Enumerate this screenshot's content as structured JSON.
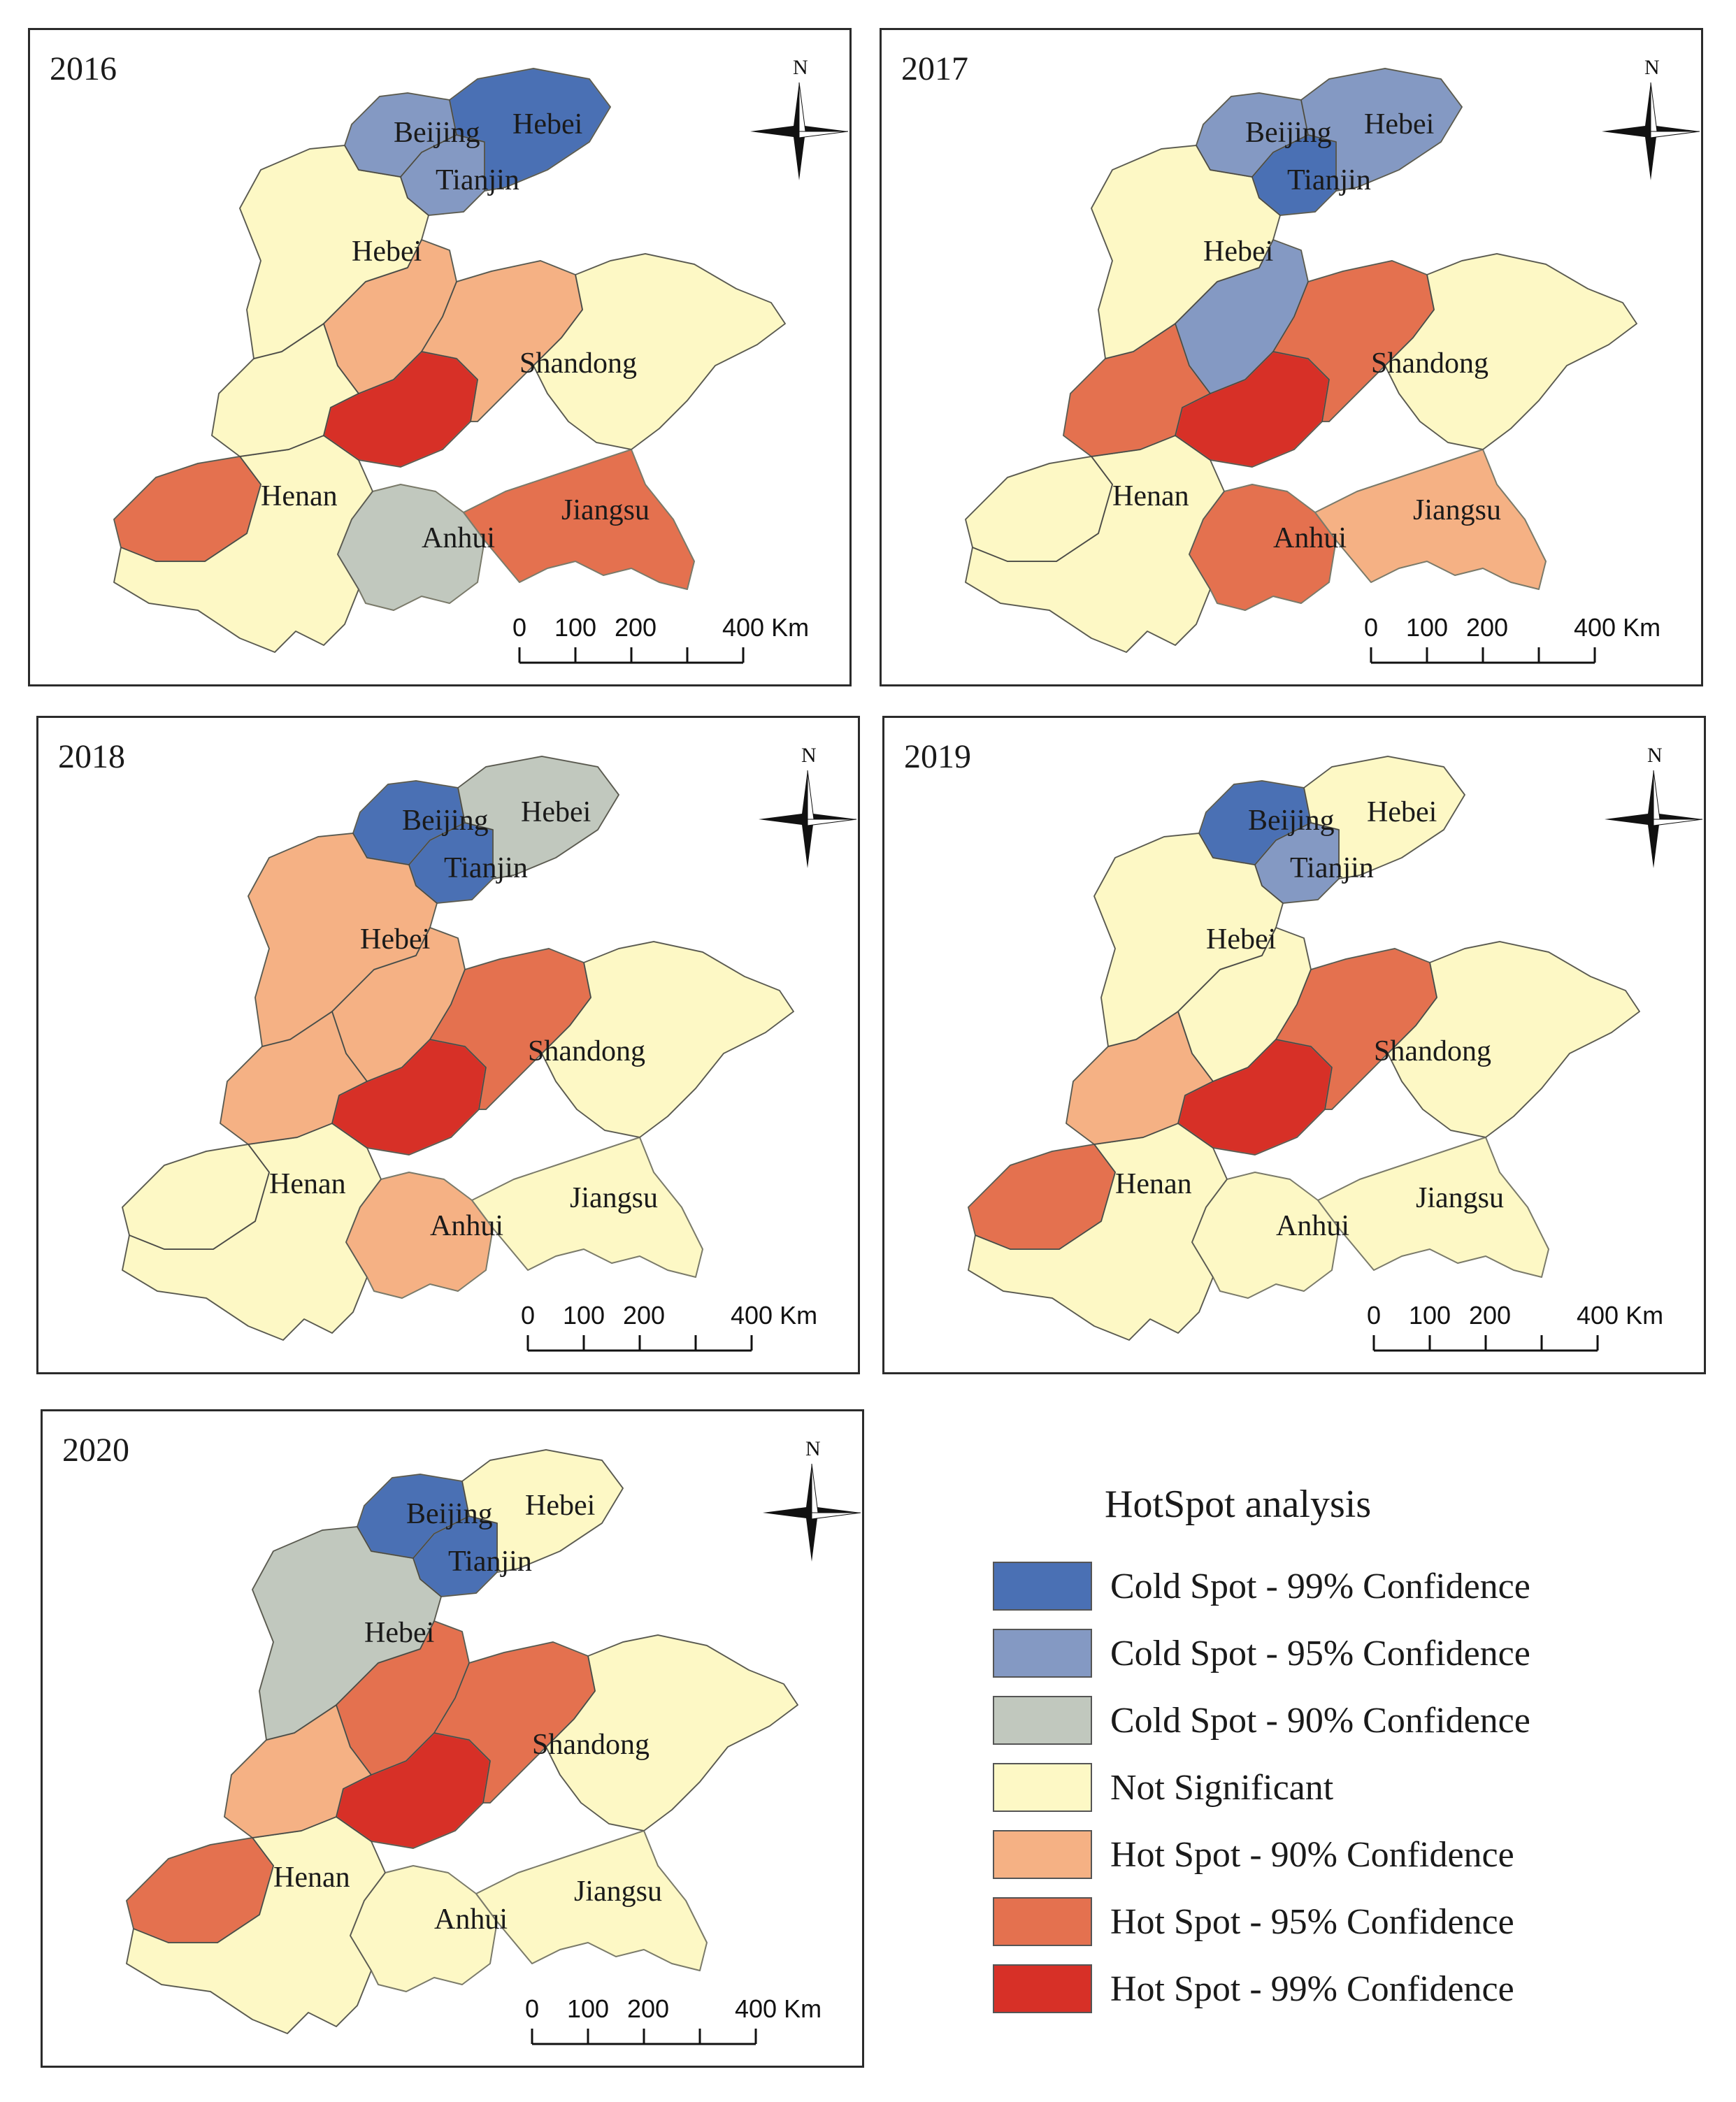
{
  "colors": {
    "cold99": "#4a70b4",
    "cold95": "#8499c3",
    "cold90": "#c1c8be",
    "ns": "#fdf8c5",
    "hot90": "#f5b184",
    "hot95": "#e4714f",
    "hot99": "#d73027"
  },
  "north_label": "N",
  "scale_labels": [
    "0",
    "100",
    "200",
    "400 Km"
  ],
  "panels": [
    {
      "year": "2016",
      "labels": [
        "Beijing",
        "Tianjin",
        "Hebei",
        "Hebei",
        "Shandong",
        "Henan",
        "Anhui",
        "Jiangsu"
      ],
      "regions": {
        "beijing": "cold95",
        "tianjin": "cold95",
        "hebei_ne": "cold99",
        "hebei_w": "ns",
        "hebei_s": "hot90",
        "shandong_w": "hot99",
        "shandong_c": "hot90",
        "shandong_e": "ns",
        "henan_n": "ns",
        "henan_w": "hot95",
        "henan_s": "ns",
        "anhui": "cold90",
        "jiangsu": "hot95"
      }
    },
    {
      "year": "2017",
      "labels": [
        "Beijing",
        "Tianjin",
        "Hebei",
        "Hebei",
        "Shandong",
        "Henan",
        "Anhui",
        "Jiangsu"
      ],
      "regions": {
        "beijing": "cold95",
        "tianjin": "cold99",
        "hebei_ne": "cold95",
        "hebei_w": "ns",
        "hebei_s": "cold95",
        "shandong_w": "hot99",
        "shandong_c": "hot95",
        "shandong_e": "ns",
        "henan_n": "hot95",
        "henan_w": "ns",
        "henan_s": "ns",
        "anhui": "hot95",
        "jiangsu": "hot90"
      }
    },
    {
      "year": "2018",
      "labels": [
        "Beijing",
        "Tianjin",
        "Hebei",
        "Hebei",
        "Shandong",
        "Henan",
        "Anhui",
        "Jiangsu"
      ],
      "regions": {
        "beijing": "cold99",
        "tianjin": "cold99",
        "hebei_ne": "cold90",
        "hebei_w": "hot90",
        "hebei_s": "hot90",
        "shandong_w": "hot99",
        "shandong_c": "hot95",
        "shandong_e": "ns",
        "henan_n": "hot90",
        "henan_w": "ns",
        "henan_s": "ns",
        "anhui": "hot90",
        "jiangsu": "ns"
      }
    },
    {
      "year": "2019",
      "labels": [
        "Beijing",
        "Tianjin",
        "Hebei",
        "Hebei",
        "Shandong",
        "Henan",
        "Anhui",
        "Jiangsu"
      ],
      "regions": {
        "beijing": "cold99",
        "tianjin": "cold95",
        "hebei_ne": "ns",
        "hebei_w": "ns",
        "hebei_s": "ns",
        "shandong_w": "hot99",
        "shandong_c": "hot95",
        "shandong_e": "ns",
        "henan_n": "hot90",
        "henan_w": "hot95",
        "henan_s": "ns",
        "anhui": "ns",
        "jiangsu": "ns"
      }
    },
    {
      "year": "2020",
      "labels": [
        "Beijing",
        "Tianjin",
        "Hebei",
        "Hebei",
        "Shandong",
        "Henan",
        "Anhui",
        "Jiangsu"
      ],
      "regions": {
        "beijing": "cold99",
        "tianjin": "cold99",
        "hebei_ne": "ns",
        "hebei_w": "cold90",
        "hebei_s": "hot95",
        "shandong_w": "hot99",
        "shandong_c": "hot95",
        "shandong_e": "ns",
        "henan_n": "hot90",
        "henan_w": "hot95",
        "henan_s": "ns",
        "anhui": "ns",
        "jiangsu": "ns"
      }
    }
  ],
  "legend": {
    "title": "HotSpot analysis",
    "items": [
      {
        "key": "cold99",
        "label": "Cold Spot - 99% Confidence"
      },
      {
        "key": "cold95",
        "label": "Cold Spot - 95% Confidence"
      },
      {
        "key": "cold90",
        "label": "Cold Spot - 90% Confidence"
      },
      {
        "key": "ns",
        "label": "Not Significant"
      },
      {
        "key": "hot90",
        "label": "Hot Spot - 90% Confidence"
      },
      {
        "key": "hot95",
        "label": "Hot Spot - 95% Confidence"
      },
      {
        "key": "hot99",
        "label": "Hot Spot - 99% Confidence"
      }
    ]
  }
}
